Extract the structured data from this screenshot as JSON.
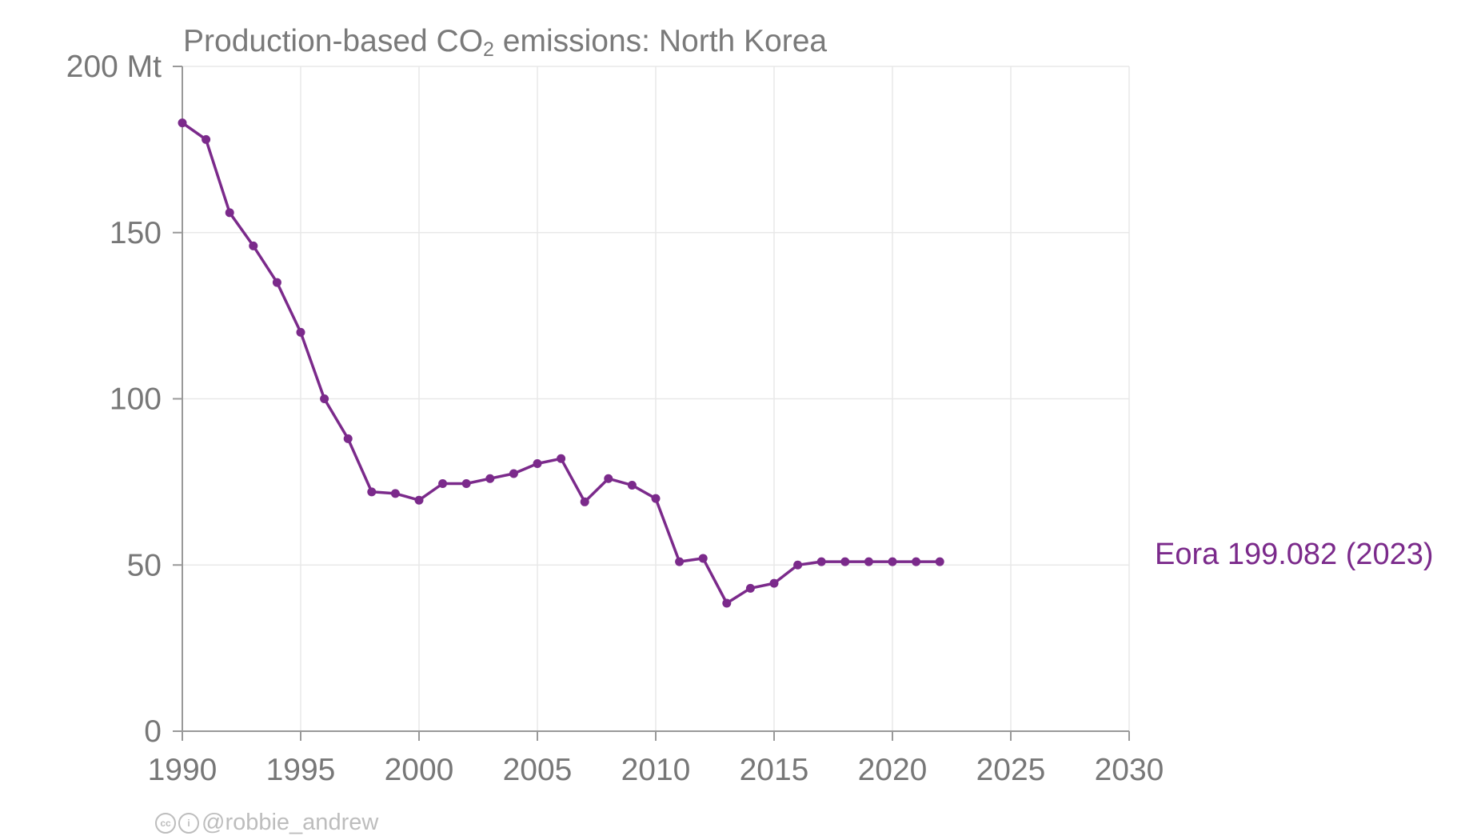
{
  "title": {
    "prefix": "Production-based CO",
    "subscript": "2",
    "suffix": " emissions: North Korea"
  },
  "credit": {
    "handle": "@robbie_andrew",
    "icons": [
      "creative-commons-icon",
      "attribution-icon"
    ]
  },
  "series_label": "Eora 199.082 (2023)",
  "colors": {
    "series": "#7b2a8b",
    "axis": "#999999",
    "grid": "#e8e8e8",
    "text": "#777777"
  },
  "chart_data": {
    "type": "line",
    "title": "Production-based CO2 emissions: North Korea",
    "xlabel": "",
    "ylabel": "",
    "xlim": [
      1990,
      2030
    ],
    "ylim": [
      0,
      200
    ],
    "x_ticks": [
      1990,
      1995,
      2000,
      2005,
      2010,
      2015,
      2020,
      2025,
      2030
    ],
    "y_ticks": [
      0,
      50,
      100,
      150,
      200
    ],
    "y_tick_labels": [
      "0",
      "50",
      "100",
      "150",
      "200 Mt"
    ],
    "grid": true,
    "series": [
      {
        "name": "Eora 199.082 (2023)",
        "x": [
          1990,
          1991,
          1992,
          1993,
          1994,
          1995,
          1996,
          1997,
          1998,
          1999,
          2000,
          2001,
          2002,
          2003,
          2004,
          2005,
          2006,
          2007,
          2008,
          2009,
          2010,
          2011,
          2012,
          2013,
          2014,
          2015,
          2016,
          2017,
          2018,
          2019,
          2020,
          2021,
          2022
        ],
        "y": [
          183,
          178,
          156,
          146,
          135,
          120,
          100,
          88,
          72,
          71.5,
          69.5,
          74.5,
          74.5,
          76,
          77.5,
          80.5,
          82,
          69,
          76,
          74,
          70,
          51,
          52,
          38.5,
          43,
          44.5,
          50,
          51,
          51,
          51,
          51,
          51,
          51
        ]
      }
    ]
  }
}
